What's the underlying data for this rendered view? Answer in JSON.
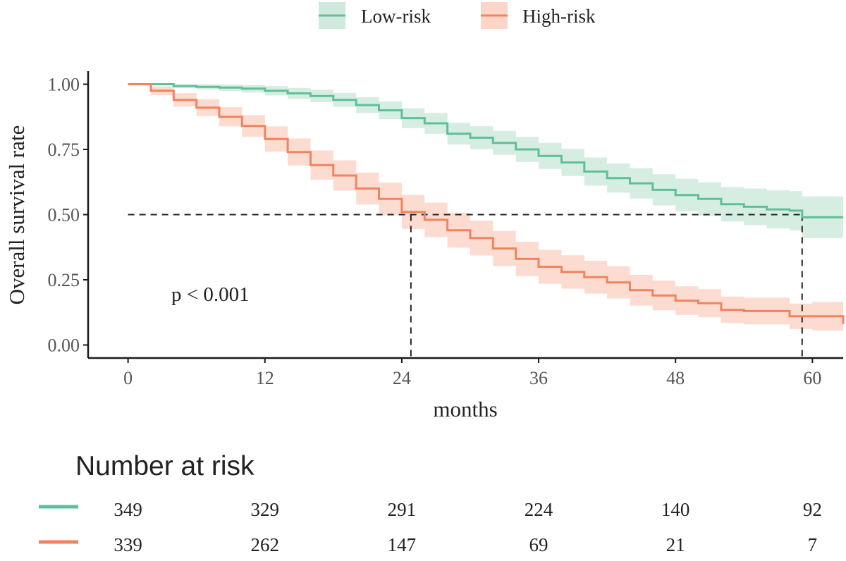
{
  "colors": {
    "low_risk": "#5fbf9b",
    "low_risk_band": "#cfeadc",
    "high_risk": "#f0845e",
    "high_risk_band": "#fbd6c8",
    "axis": "#1a1a1a",
    "text": "#222222",
    "tick_text": "#555555"
  },
  "chart_data": {
    "type": "line",
    "title": "",
    "xlabel": "months",
    "ylabel": "Overall survival rate",
    "xlim": [
      -3.5,
      62.7
    ],
    "ylim": [
      -0.05,
      1.05
    ],
    "x_ticks": [
      0,
      12,
      24,
      36,
      48,
      60
    ],
    "x_tick_labels": [
      "0",
      "12",
      "24",
      "36",
      "48",
      "60"
    ],
    "y_ticks": [
      0,
      0.25,
      0.5,
      0.75,
      1.0
    ],
    "y_tick_labels": [
      "0.00",
      "0.25",
      "0.50",
      "0.75",
      "1.00"
    ],
    "legend": {
      "position": "top",
      "entries": [
        "Low-risk",
        "High-risk"
      ]
    },
    "annotation": "p < 0.001",
    "median_line": {
      "y": 0.5,
      "x_values": [
        24.8,
        59.1
      ]
    },
    "series": [
      {
        "name": "Low-risk",
        "color_key": "low_risk",
        "x": [
          0,
          2,
          4,
          6,
          8,
          10,
          12,
          14,
          16,
          18,
          20,
          22,
          24,
          26,
          28,
          30,
          32,
          34,
          36,
          38,
          40,
          42,
          44,
          46,
          48,
          50,
          52,
          54,
          56,
          58,
          59.1,
          62.7
        ],
        "y": [
          1.0,
          1.0,
          0.993,
          0.99,
          0.987,
          0.983,
          0.975,
          0.965,
          0.955,
          0.94,
          0.92,
          0.9,
          0.87,
          0.85,
          0.81,
          0.795,
          0.775,
          0.75,
          0.725,
          0.7,
          0.665,
          0.64,
          0.62,
          0.595,
          0.575,
          0.56,
          0.54,
          0.53,
          0.52,
          0.515,
          0.49,
          0.49
        ],
        "ci_lower": [
          1.0,
          0.998,
          0.986,
          0.98,
          0.974,
          0.968,
          0.957,
          0.944,
          0.931,
          0.913,
          0.89,
          0.866,
          0.832,
          0.81,
          0.768,
          0.751,
          0.729,
          0.702,
          0.675,
          0.648,
          0.611,
          0.584,
          0.562,
          0.535,
          0.513,
          0.496,
          0.474,
          0.46,
          0.447,
          0.44,
          0.41,
          0.4
        ],
        "ci_upper": [
          1.0,
          1.0,
          1.0,
          1.0,
          0.999,
          0.997,
          0.993,
          0.986,
          0.979,
          0.967,
          0.95,
          0.934,
          0.908,
          0.89,
          0.852,
          0.839,
          0.821,
          0.798,
          0.775,
          0.752,
          0.719,
          0.696,
          0.678,
          0.655,
          0.637,
          0.624,
          0.606,
          0.6,
          0.593,
          0.59,
          0.57,
          0.58
        ]
      },
      {
        "name": "High-risk",
        "color_key": "high_risk",
        "x": [
          0,
          2,
          4,
          6,
          8,
          10,
          12,
          14,
          16,
          18,
          20,
          22,
          24,
          26,
          28,
          30,
          32,
          34,
          36,
          38,
          40,
          42,
          44,
          46,
          48,
          50,
          52,
          54,
          56,
          58,
          60,
          62.7
        ],
        "y": [
          1.0,
          0.975,
          0.94,
          0.91,
          0.875,
          0.84,
          0.79,
          0.74,
          0.69,
          0.65,
          0.6,
          0.56,
          0.51,
          0.48,
          0.44,
          0.41,
          0.37,
          0.33,
          0.3,
          0.28,
          0.26,
          0.24,
          0.21,
          0.19,
          0.17,
          0.16,
          0.135,
          0.13,
          0.13,
          0.11,
          0.11,
          0.08
        ],
        "ci_lower": [
          1.0,
          0.958,
          0.914,
          0.878,
          0.838,
          0.798,
          0.742,
          0.688,
          0.634,
          0.592,
          0.539,
          0.497,
          0.445,
          0.414,
          0.373,
          0.343,
          0.303,
          0.264,
          0.235,
          0.216,
          0.197,
          0.178,
          0.151,
          0.133,
          0.115,
          0.106,
          0.084,
          0.079,
          0.079,
          0.061,
          0.055,
          0.03
        ],
        "ci_upper": [
          1.0,
          0.992,
          0.966,
          0.942,
          0.912,
          0.882,
          0.838,
          0.792,
          0.746,
          0.708,
          0.661,
          0.623,
          0.575,
          0.546,
          0.507,
          0.477,
          0.437,
          0.396,
          0.365,
          0.344,
          0.323,
          0.302,
          0.269,
          0.247,
          0.225,
          0.214,
          0.186,
          0.181,
          0.181,
          0.159,
          0.165,
          0.14
        ]
      }
    ],
    "risk_table": {
      "title": "Number at risk",
      "times": [
        0,
        12,
        24,
        36,
        48,
        60
      ],
      "rows": [
        {
          "name": "Low-risk",
          "color_key": "low_risk",
          "values": [
            "349",
            "329",
            "291",
            "224",
            "140",
            "92"
          ]
        },
        {
          "name": "High-risk",
          "color_key": "high_risk",
          "values": [
            "339",
            "262",
            "147",
            "69",
            "21",
            "7"
          ]
        }
      ]
    }
  }
}
